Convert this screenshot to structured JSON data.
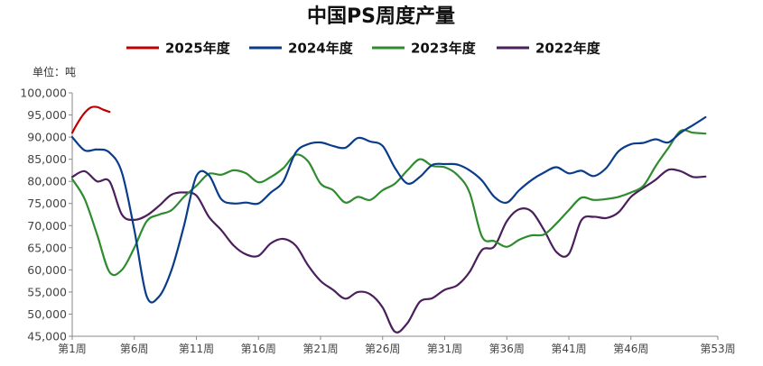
{
  "chart_data": {
    "type": "line",
    "title": "中国PS周度产量",
    "unit_label": "单位：吨",
    "xlabel": "",
    "ylabel": "",
    "x_range": [
      1,
      53
    ],
    "ylim": [
      45000,
      100000
    ],
    "y_ticks": [
      45000,
      50000,
      55000,
      60000,
      65000,
      70000,
      75000,
      80000,
      85000,
      90000,
      95000,
      100000
    ],
    "y_tick_labels": [
      "45,000",
      "50,000",
      "55,000",
      "60,000",
      "65,000",
      "70,000",
      "75,000",
      "80,000",
      "85,000",
      "90,000",
      "95,000",
      "100,000"
    ],
    "x_ticks": [
      1,
      6,
      11,
      16,
      21,
      26,
      31,
      36,
      41,
      46,
      53
    ],
    "x_tick_labels": [
      "第1周",
      "第6周",
      "第11周",
      "第16周",
      "第21周",
      "第26周",
      "第31周",
      "第36周",
      "第41周",
      "第46周",
      "第53周"
    ],
    "grid": false,
    "legend_position": "top-center",
    "series": [
      {
        "name": "2025年度",
        "color": "#C00000",
        "points": [
          [
            1,
            91000
          ],
          [
            1.5,
            93500
          ],
          [
            2,
            95500
          ],
          [
            2.5,
            96700
          ],
          [
            3,
            96800
          ],
          [
            3.5,
            96200
          ],
          [
            4,
            95700
          ]
        ]
      },
      {
        "name": "2024年度",
        "color": "#0A3C8C",
        "points": [
          [
            1,
            90000
          ],
          [
            2,
            87000
          ],
          [
            3,
            87200
          ],
          [
            4,
            86500
          ],
          [
            5,
            82000
          ],
          [
            6,
            69000
          ],
          [
            7,
            54000
          ],
          [
            8,
            54000
          ],
          [
            9,
            60000
          ],
          [
            10,
            70000
          ],
          [
            11,
            81200
          ],
          [
            12,
            81400
          ],
          [
            13,
            76000
          ],
          [
            14,
            75000
          ],
          [
            15,
            75200
          ],
          [
            16,
            75000
          ],
          [
            17,
            77500
          ],
          [
            18,
            80000
          ],
          [
            19,
            86500
          ],
          [
            20,
            88400
          ],
          [
            21,
            88800
          ],
          [
            22,
            88000
          ],
          [
            23,
            87600
          ],
          [
            24,
            89800
          ],
          [
            25,
            89000
          ],
          [
            26,
            88000
          ],
          [
            27,
            83000
          ],
          [
            28,
            79500
          ],
          [
            29,
            81000
          ],
          [
            30,
            83700
          ],
          [
            31,
            83900
          ],
          [
            32,
            83800
          ],
          [
            33,
            82500
          ],
          [
            34,
            80200
          ],
          [
            35,
            76500
          ],
          [
            36,
            75200
          ],
          [
            37,
            78000
          ],
          [
            38,
            80300
          ],
          [
            39,
            82000
          ],
          [
            40,
            83200
          ],
          [
            41,
            81800
          ],
          [
            42,
            82400
          ],
          [
            43,
            81200
          ],
          [
            44,
            83000
          ],
          [
            45,
            86800
          ],
          [
            46,
            88400
          ],
          [
            47,
            88700
          ],
          [
            48,
            89500
          ],
          [
            49,
            88800
          ],
          [
            50,
            91000
          ],
          [
            51,
            92700
          ],
          [
            52,
            94500
          ]
        ]
      },
      {
        "name": "2023年度",
        "color": "#2E8B2E",
        "points": [
          [
            1,
            80500
          ],
          [
            2,
            76000
          ],
          [
            3,
            68000
          ],
          [
            4,
            59500
          ],
          [
            5,
            60000
          ],
          [
            6,
            65000
          ],
          [
            7,
            71000
          ],
          [
            8,
            72500
          ],
          [
            9,
            73500
          ],
          [
            10,
            76500
          ],
          [
            11,
            79000
          ],
          [
            12,
            81700
          ],
          [
            13,
            81500
          ],
          [
            14,
            82500
          ],
          [
            15,
            81800
          ],
          [
            16,
            79800
          ],
          [
            17,
            81000
          ],
          [
            18,
            83000
          ],
          [
            19,
            86000
          ],
          [
            20,
            84500
          ],
          [
            21,
            79500
          ],
          [
            22,
            78000
          ],
          [
            23,
            75200
          ],
          [
            24,
            76500
          ],
          [
            25,
            75800
          ],
          [
            26,
            78000
          ],
          [
            27,
            79500
          ],
          [
            28,
            82500
          ],
          [
            29,
            85000
          ],
          [
            30,
            83500
          ],
          [
            31,
            83200
          ],
          [
            32,
            81500
          ],
          [
            33,
            77500
          ],
          [
            34,
            67500
          ],
          [
            35,
            66500
          ],
          [
            36,
            65200
          ],
          [
            37,
            66800
          ],
          [
            38,
            67800
          ],
          [
            39,
            68000
          ],
          [
            40,
            70500
          ],
          [
            41,
            73500
          ],
          [
            42,
            76300
          ],
          [
            43,
            75800
          ],
          [
            44,
            76000
          ],
          [
            45,
            76500
          ],
          [
            46,
            77500
          ],
          [
            47,
            79000
          ],
          [
            48,
            83500
          ],
          [
            49,
            87500
          ],
          [
            50,
            91400
          ],
          [
            51,
            91000
          ],
          [
            52,
            90800
          ]
        ]
      },
      {
        "name": "2022年度",
        "color": "#4B1E5C",
        "points": [
          [
            1,
            81000
          ],
          [
            2,
            82300
          ],
          [
            3,
            80000
          ],
          [
            4,
            80000
          ],
          [
            5,
            72500
          ],
          [
            6,
            71300
          ],
          [
            7,
            72300
          ],
          [
            8,
            74500
          ],
          [
            9,
            77000
          ],
          [
            10,
            77500
          ],
          [
            11,
            76800
          ],
          [
            12,
            72000
          ],
          [
            13,
            69000
          ],
          [
            14,
            65500
          ],
          [
            15,
            63500
          ],
          [
            16,
            63200
          ],
          [
            17,
            66000
          ],
          [
            18,
            67000
          ],
          [
            19,
            65500
          ],
          [
            20,
            61000
          ],
          [
            21,
            57500
          ],
          [
            22,
            55500
          ],
          [
            23,
            53500
          ],
          [
            24,
            55000
          ],
          [
            25,
            54500
          ],
          [
            26,
            51500
          ],
          [
            27,
            46000
          ],
          [
            28,
            48000
          ],
          [
            29,
            52800
          ],
          [
            30,
            53600
          ],
          [
            31,
            55500
          ],
          [
            32,
            56500
          ],
          [
            33,
            59500
          ],
          [
            34,
            64500
          ],
          [
            35,
            65300
          ],
          [
            36,
            71000
          ],
          [
            37,
            73700
          ],
          [
            38,
            73200
          ],
          [
            39,
            69000
          ],
          [
            40,
            64000
          ],
          [
            41,
            63600
          ],
          [
            42,
            71200
          ],
          [
            43,
            72000
          ],
          [
            44,
            71700
          ],
          [
            45,
            73000
          ],
          [
            46,
            76500
          ],
          [
            47,
            78500
          ],
          [
            48,
            80400
          ],
          [
            49,
            82600
          ],
          [
            50,
            82300
          ],
          [
            51,
            81000
          ],
          [
            52,
            81100
          ]
        ]
      }
    ]
  }
}
